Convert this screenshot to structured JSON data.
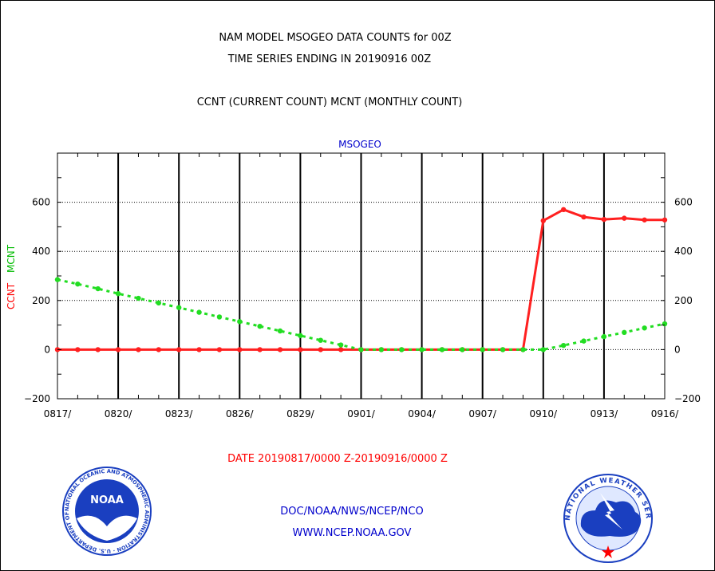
{
  "header": {
    "title_line1": "NAM MODEL MSOGEO DATA COUNTS for 00Z",
    "title_line2": "TIME SERIES ENDING IN 20190916 00Z",
    "subtitle": "CCNT (CURRENT COUNT) MCNT (MONTHLY COUNT)"
  },
  "footer": {
    "date_range": "DATE 20190817/0000 Z-20190916/0000 Z",
    "org_line": "DOC/NOAA/NWS/NCEP/NCO",
    "url_line": "WWW.NCEP.NOAA.GOV",
    "noaa_logo_text": "NOAA",
    "noaa_ring_text": "NATIONAL OCEANIC AND ATMOSPHERIC ADMINISTRATION · U.S. DEPARTMENT OF COMMERCE ·",
    "nws_ring_text": "NATIONAL WEATHER SERVICE"
  },
  "colors": {
    "ccnt": "#ff2020",
    "mcnt": "#22dd22",
    "plot_title": "#0000cc",
    "footer_blue": "#0000cc",
    "date_red": "#ff0000",
    "noaa_blue": "#1a3fc0",
    "nws_blue": "#1a3fc0"
  },
  "chart_data": {
    "type": "line",
    "title": "MSOGEO",
    "ylabel_ccnt": "CCNT",
    "ylabel_mcnt": "MCNT",
    "ylim": [
      -200,
      800
    ],
    "yticks": [
      -200,
      0,
      200,
      400,
      600
    ],
    "grid": true,
    "x": [
      "0817",
      "0818",
      "0819",
      "0820",
      "0821",
      "0822",
      "0823",
      "0824",
      "0825",
      "0826",
      "0827",
      "0828",
      "0829",
      "0830",
      "0831",
      "0901",
      "0902",
      "0903",
      "0904",
      "0905",
      "0906",
      "0907",
      "0908",
      "0909",
      "0910",
      "0911",
      "0912",
      "0913",
      "0914",
      "0915",
      "0916"
    ],
    "xtick_labels": [
      "0817/",
      "0820/",
      "0823/",
      "0826/",
      "0829/",
      "0901/",
      "0904/",
      "0907/",
      "0910/",
      "0913/",
      "0916/"
    ],
    "series": [
      {
        "name": "CCNT",
        "color": "#ff2020",
        "style": "solid",
        "values": [
          0,
          0,
          0,
          0,
          0,
          0,
          0,
          0,
          0,
          0,
          0,
          0,
          0,
          0,
          0,
          0,
          0,
          0,
          0,
          0,
          0,
          0,
          0,
          0,
          525,
          570,
          540,
          530,
          535,
          528,
          528
        ]
      },
      {
        "name": "MCNT",
        "color": "#22dd22",
        "style": "dashed",
        "values": [
          285,
          267,
          248,
          228,
          209,
          190,
          171,
          152,
          133,
          114,
          95,
          76,
          57,
          38,
          19,
          0,
          0,
          0,
          0,
          0,
          0,
          0,
          0,
          0,
          0,
          17,
          35,
          53,
          70,
          88,
          105
        ]
      }
    ]
  }
}
